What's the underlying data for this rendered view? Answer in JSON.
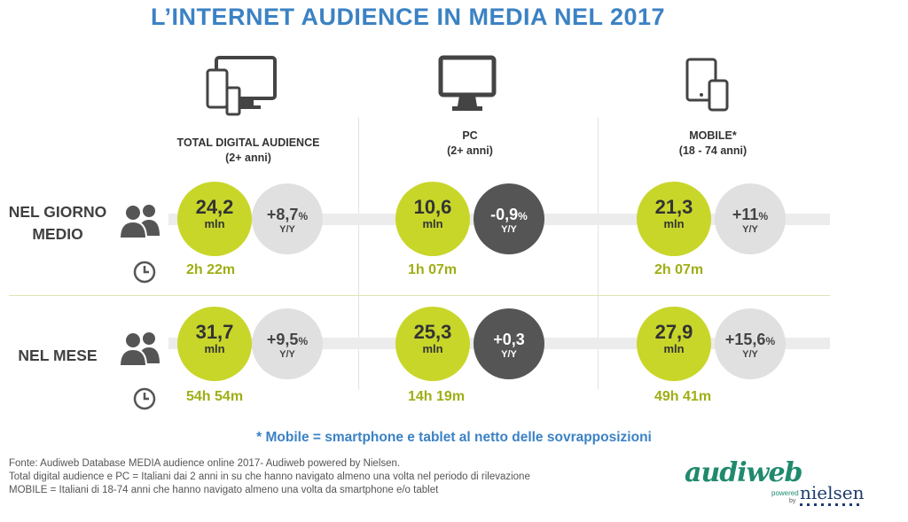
{
  "title": "L’INTERNET AUDIENCE IN MEDIA NEL 2017",
  "columns": [
    {
      "name": "TOTAL DIGITAL AUDIENCE",
      "sub": "(2+ anni)"
    },
    {
      "name": "PC",
      "sub": "(2+ anni)"
    },
    {
      "name": "MOBILE*",
      "sub": "(18 - 74 anni)"
    }
  ],
  "rows": [
    {
      "label_line1": "NEL GIORNO",
      "label_line2": "MEDIO",
      "cells": [
        {
          "value": "24,2",
          "unit": "mln",
          "change": "+8,7",
          "change_pct": "%",
          "yy": "Y/Y",
          "change_style": "light",
          "time": "2h 22m"
        },
        {
          "value": "10,6",
          "unit": "mln",
          "change": "-0,9",
          "change_pct": "%",
          "yy": "Y/Y",
          "change_style": "dark",
          "time": "1h 07m"
        },
        {
          "value": "21,3",
          "unit": "mln",
          "change": "+11",
          "change_pct": "%",
          "yy": "Y/Y",
          "change_style": "light",
          "time": "2h 07m"
        }
      ]
    },
    {
      "label_line1": "NEL MESE",
      "label_line2": "",
      "cells": [
        {
          "value": "31,7",
          "unit": "mln",
          "change": "+9,5",
          "change_pct": "%",
          "yy": "Y/Y",
          "change_style": "light",
          "time": "54h 54m"
        },
        {
          "value": "25,3",
          "unit": "mln",
          "change": "+0,3",
          "change_pct": "",
          "yy": "Y/Y",
          "change_style": "dark",
          "time": "14h 19m"
        },
        {
          "value": "27,9",
          "unit": "mln",
          "change": "+15,6",
          "change_pct": "%",
          "yy": "Y/Y",
          "change_style": "light",
          "time": "49h 41m"
        }
      ]
    }
  ],
  "note": "* Mobile = smartphone e tablet al netto delle sovrapposizioni",
  "footer": [
    "Fonte: Audiweb Database MEDIA audience online 2017- Audiweb powered by Nielsen.",
    "Total digital audience e PC = Italiani dai 2 anni in su che hanno navigato almeno una volta nel periodo di rilevazione",
    "MOBILE = Italiani di 18-74 anni che hanno navigato almeno una volta da smartphone e/o tablet"
  ],
  "logo": {
    "brand": "audiweb",
    "powered": "powered",
    "by": "by",
    "partner": "nielsen"
  },
  "colors": {
    "title": "#3b82c4",
    "green": "#c8d62a",
    "time_green": "#9fae14",
    "light_gray": "#e0e0e0",
    "dark_gray": "#555555"
  },
  "icons": [
    "multi-device-icon",
    "monitor-icon",
    "mobile-devices-icon",
    "people-icon",
    "clock-icon"
  ]
}
